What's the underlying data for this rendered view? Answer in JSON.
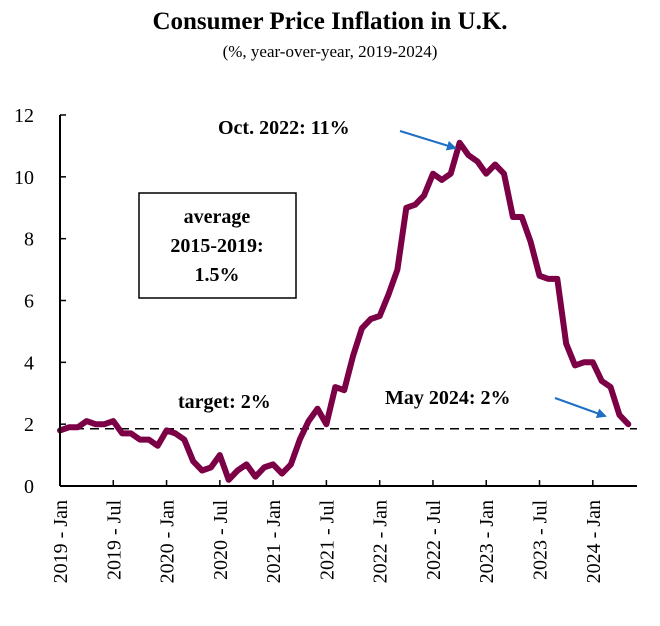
{
  "chart_data": {
    "type": "line",
    "title": "Consumer Price Inflation in U.K.",
    "subtitle": "(%, year-over-year, 2019-2024)",
    "xlabel": "",
    "ylabel": "",
    "ylim": [
      0,
      12
    ],
    "yticks": [
      0,
      2,
      4,
      6,
      8,
      10,
      12
    ],
    "xtick_labels": [
      "2019 - Jan",
      "2019 - Jul",
      "2020 - Jan",
      "2020 - Jul",
      "2021 - Jan",
      "2021 - Jul",
      "2022 - Jan",
      "2022 - Jul",
      "2023 - Jan",
      "2023 - Jul",
      "2024 - Jan"
    ],
    "xtick_month_index": [
      0,
      6,
      12,
      18,
      24,
      30,
      36,
      42,
      48,
      54,
      60
    ],
    "x_range_months": [
      0,
      65
    ],
    "grid": false,
    "series": [
      {
        "name": "CPI inflation",
        "color": "#7b0046",
        "start": "2019-01",
        "values": [
          1.8,
          1.9,
          1.9,
          2.1,
          2.0,
          2.0,
          2.1,
          1.7,
          1.7,
          1.5,
          1.5,
          1.3,
          1.8,
          1.7,
          1.5,
          0.8,
          0.5,
          0.6,
          1.0,
          0.2,
          0.5,
          0.7,
          0.3,
          0.6,
          0.7,
          0.4,
          0.7,
          1.5,
          2.1,
          2.5,
          2.0,
          3.2,
          3.1,
          4.2,
          5.1,
          5.4,
          5.5,
          6.2,
          7.0,
          9.0,
          9.1,
          9.4,
          10.1,
          9.9,
          10.1,
          11.1,
          10.7,
          10.5,
          10.1,
          10.4,
          10.1,
          8.7,
          8.7,
          7.9,
          6.8,
          6.7,
          6.7,
          4.6,
          3.9,
          4.0,
          4.0,
          3.4,
          3.2,
          2.3,
          2.0
        ]
      }
    ],
    "reference_line": {
      "label": "target: 2%",
      "value": 1.85,
      "style": "dashed",
      "color": "#000000"
    },
    "annotations": [
      {
        "text": "Oct. 2022: 11%",
        "point_month_index": 45,
        "point_value": 11.1,
        "arrow_color": "#1f6fc5"
      },
      {
        "text": "May 2024: 2%",
        "point_month_index": 64,
        "point_value": 2.0,
        "arrow_color": "#1f6fc5"
      }
    ],
    "text_box": {
      "lines": [
        "average",
        "2015-2019:",
        "1.5%"
      ]
    }
  }
}
